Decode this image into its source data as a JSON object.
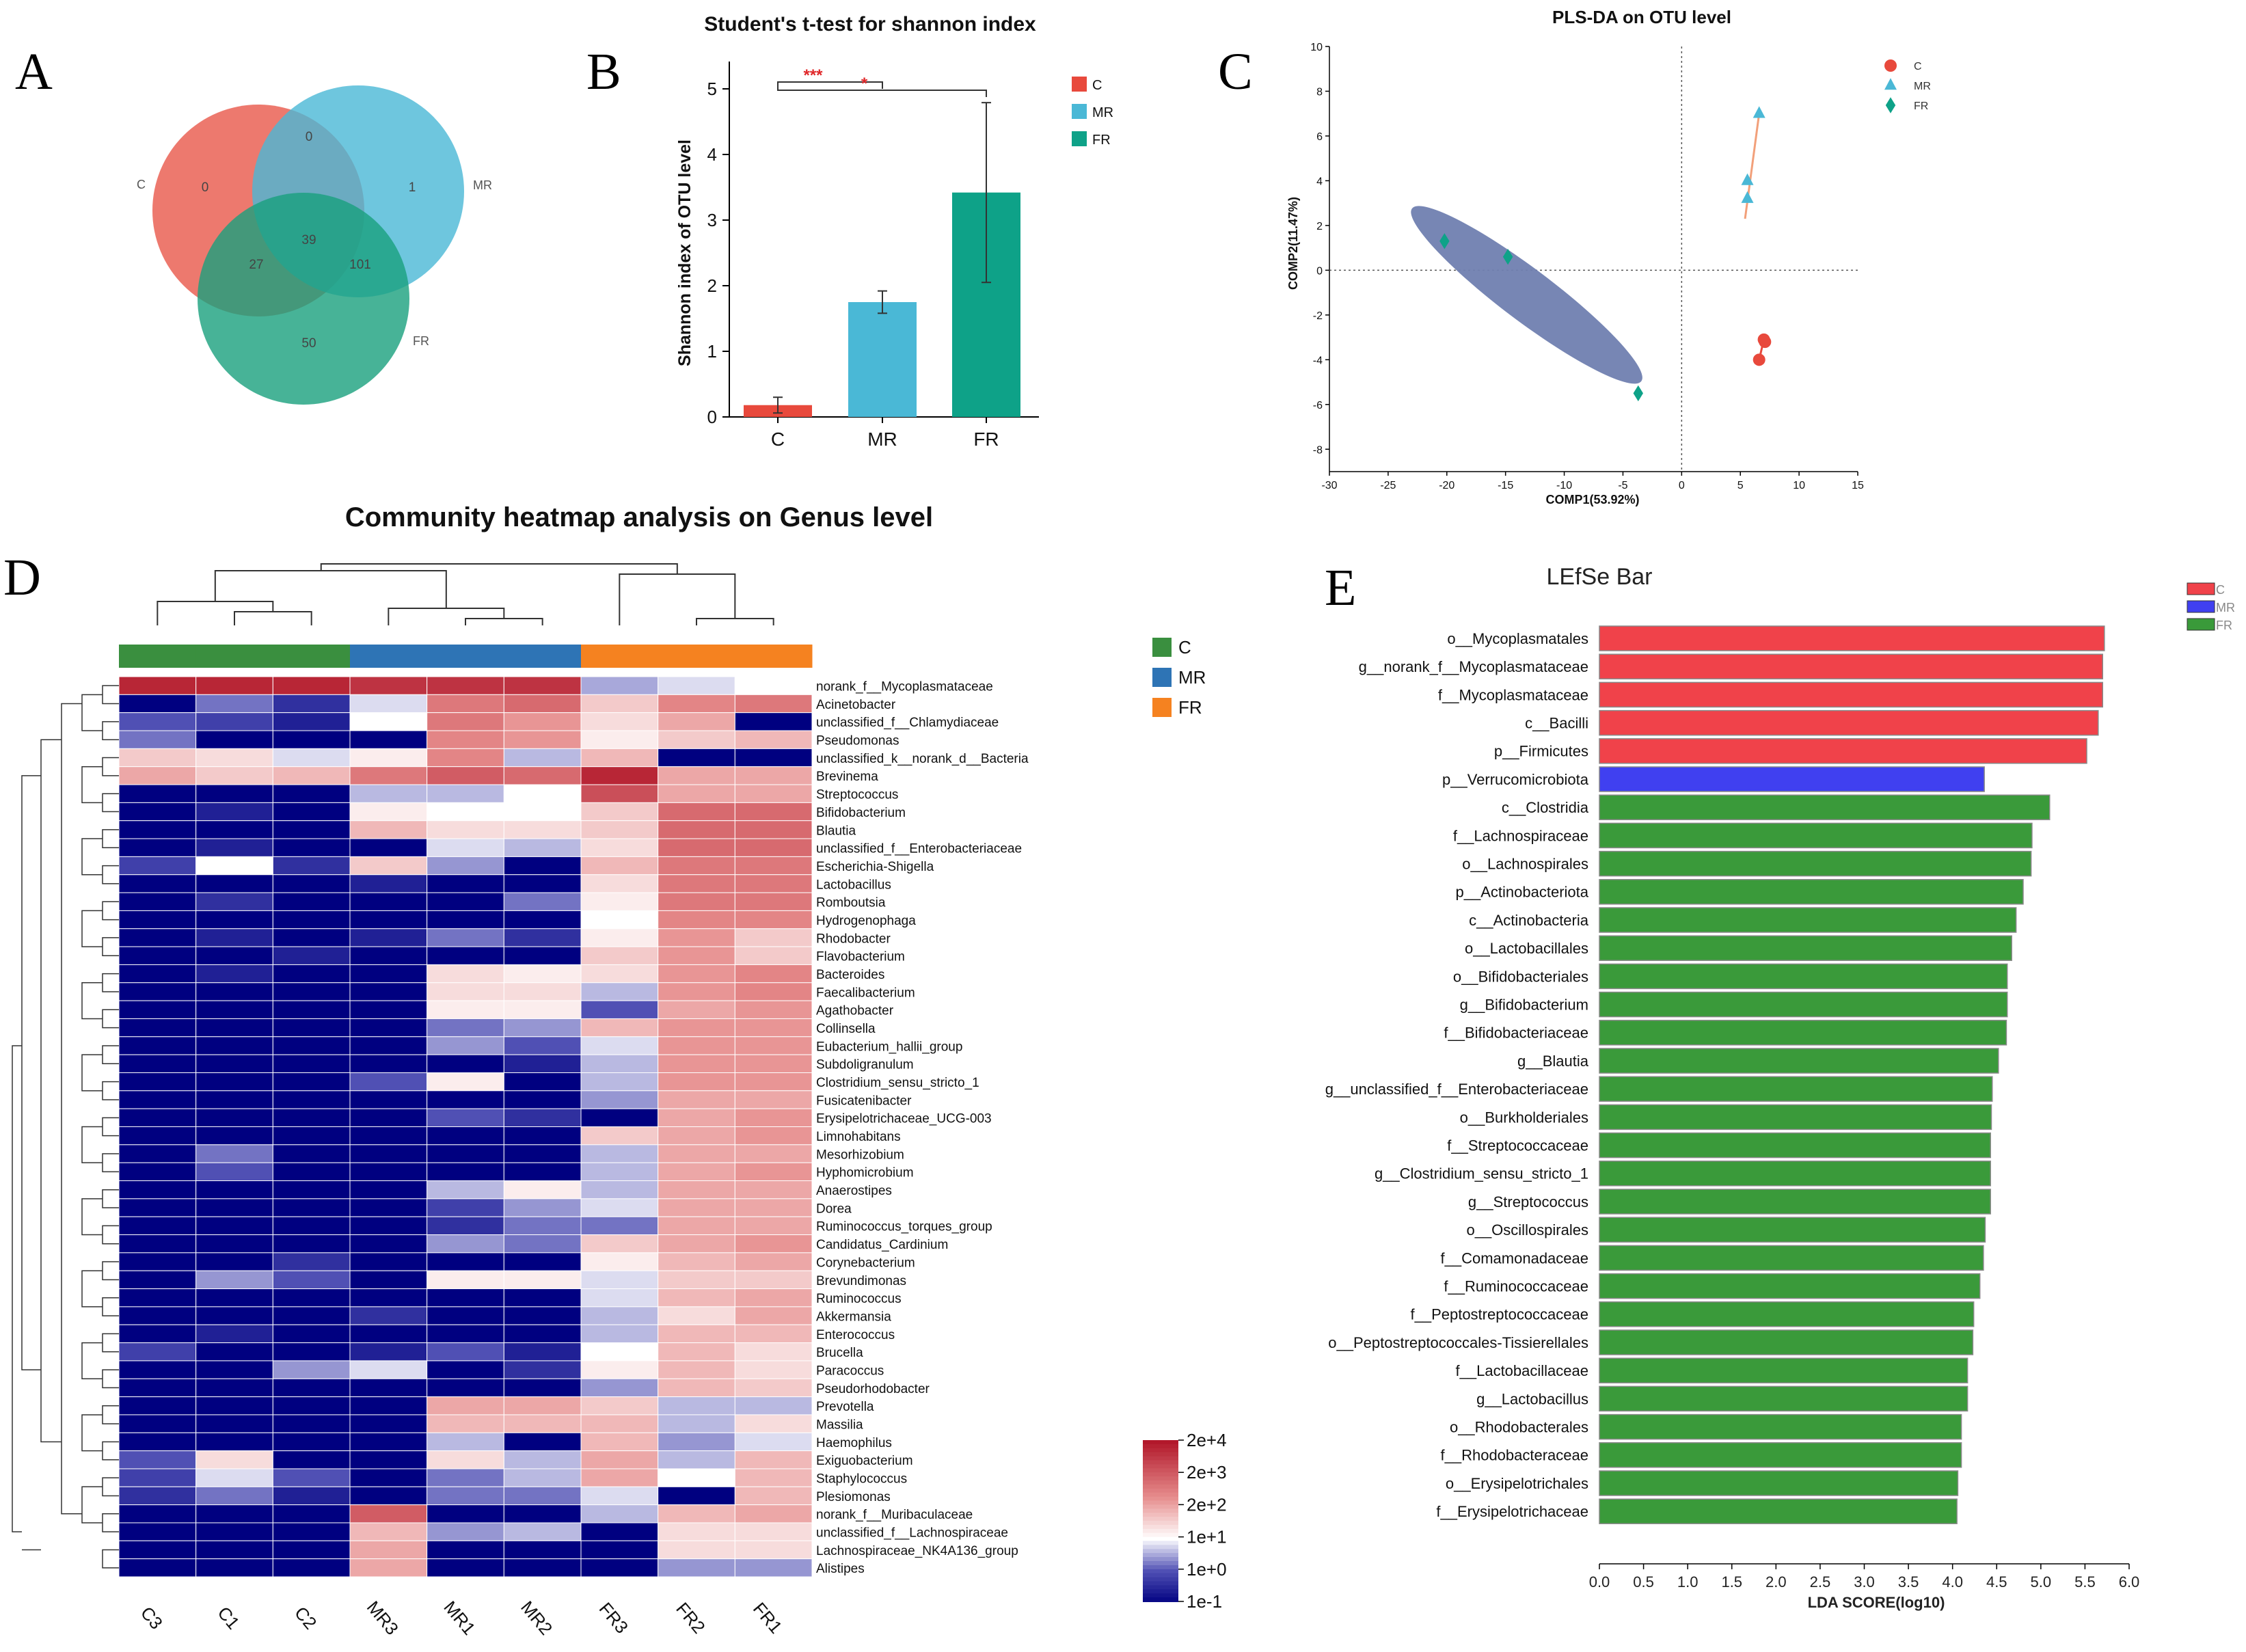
{
  "panels": {
    "A": "A",
    "B": "B",
    "C": "C",
    "D": "D",
    "E": "E"
  },
  "chart_data": [
    {
      "id": "venn",
      "type": "venn",
      "sets": [
        {
          "name": "C",
          "color": "#e8584a"
        },
        {
          "name": "MR",
          "color": "#4ab8d6"
        },
        {
          "name": "FR",
          "color": "#19a07d"
        }
      ],
      "regions": {
        "C_only": "0",
        "MR_only": "1",
        "FR_only": "50",
        "C_MR": "0",
        "C_FR": "27",
        "MR_FR": "101",
        "C_MR_FR": "39"
      }
    },
    {
      "id": "shannon",
      "type": "bar",
      "title": "Student's t-test for shannon index",
      "ylabel": "Shannon index of OTU level",
      "categories": [
        "C",
        "MR",
        "FR"
      ],
      "values": [
        0.18,
        1.75,
        3.42
      ],
      "errors": [
        0.12,
        0.17,
        1.37
      ],
      "colors": [
        "#e8493c",
        "#4ab8d6",
        "#0ea288"
      ],
      "ylim": [
        0,
        5
      ],
      "yticks": [
        "0",
        "1",
        "2",
        "3",
        "4",
        "5"
      ],
      "significance": [
        {
          "from": "C",
          "to": "MR",
          "label": "***"
        },
        {
          "from": "C",
          "to": "FR",
          "label": "*"
        }
      ],
      "legend": [
        {
          "name": "C",
          "color": "#e8493c"
        },
        {
          "name": "MR",
          "color": "#4ab8d6"
        },
        {
          "name": "FR",
          "color": "#0ea288"
        }
      ]
    },
    {
      "id": "plsda",
      "type": "scatter",
      "title": "PLS-DA on OTU level",
      "xlabel": "COMP1(53.92%)",
      "ylabel": "COMP2(11.47%)",
      "xlim": [
        -30,
        15
      ],
      "ylim": [
        -9,
        10
      ],
      "xticks": [
        "-30",
        "-25",
        "-20",
        "-15",
        "-10",
        "-5",
        "0",
        "5",
        "10",
        "15"
      ],
      "yticks": [
        "-8",
        "-6",
        "-4",
        "-2",
        "0",
        "2",
        "4",
        "6",
        "8",
        "10"
      ],
      "series": [
        {
          "name": "C",
          "color": "#e8493c",
          "shape": "circle",
          "points": [
            [
              7.0,
              -3.1
            ],
            [
              7.1,
              -3.2
            ],
            [
              6.6,
              -4.0
            ]
          ]
        },
        {
          "name": "MR",
          "color": "#4ab8d6",
          "shape": "triangle",
          "points": [
            [
              6.6,
              7.0
            ],
            [
              5.6,
              4.0
            ],
            [
              5.6,
              3.2
            ]
          ]
        },
        {
          "name": "FR",
          "color": "#0ea288",
          "shape": "diamond",
          "points": [
            [
              -20.2,
              1.3
            ],
            [
              -14.8,
              0.6
            ],
            [
              -3.7,
              -5.5
            ]
          ]
        }
      ],
      "ellipse": {
        "cx": -13.2,
        "cy": -1.1,
        "color": "#7080b0"
      }
    },
    {
      "id": "heatmap",
      "type": "heatmap",
      "title": "Community heatmap analysis on Genus level",
      "columns": [
        "C3",
        "C1",
        "C2",
        "MR3",
        "MR1",
        "MR2",
        "FR3",
        "FR2",
        "FR1"
      ],
      "column_groups": [
        "C",
        "C",
        "C",
        "MR",
        "MR",
        "MR",
        "FR",
        "FR",
        "FR"
      ],
      "group_legend": [
        {
          "name": "C",
          "color": "#3a8f3f"
        },
        {
          "name": "MR",
          "color": "#2e74b5"
        },
        {
          "name": "FR",
          "color": "#f58220"
        }
      ],
      "colorbar": [
        "2e+4",
        "2e+3",
        "2e+2",
        "1e+1",
        "1e+0",
        "1e-1"
      ],
      "rows": [
        "norank_f__Mycoplasmataceae",
        "Acinetobacter",
        "unclassified_f__Chlamydiaceae",
        "Pseudomonas",
        "unclassified_k__norank_d__Bacteria",
        "Brevinema",
        "Streptococcus",
        "Bifidobacterium",
        "Blautia",
        "unclassified_f__Enterobacteriaceae",
        "Escherichia-Shigella",
        "Lactobacillus",
        "Romboutsia",
        "Hydrogenophaga",
        "Rhodobacter",
        "Flavobacterium",
        "Bacteroides",
        "Faecalibacterium",
        "Agathobacter",
        "Collinsella",
        "Eubacterium_hallii_group",
        "Subdoligranulum",
        "Clostridium_sensu_stricto_1",
        "Fusicatenibacter",
        "Erysipelotrichaceae_UCG-003",
        "Limnohabitans",
        "Mesorhizobium",
        "Hyphomicrobium",
        "Anaerostipes",
        "Dorea",
        "Ruminococcus_torques_group",
        "Candidatus_Cardinium",
        "Corynebacterium",
        "Brevundimonas",
        "Ruminococcus",
        "Akkermansia",
        "Enterococcus",
        "Brucella",
        "Paracoccus",
        "Pseudorhodobacter",
        "Prevotella",
        "Massilia",
        "Haemophilus",
        "Exiguobacterium",
        "Staphylococcus",
        "Plesiomonas",
        "norank_f__Muribaculaceae",
        "unclassified_f__Lachnospiraceae",
        "Lachnospiraceae_NK4A136_group",
        "Alistipes"
      ],
      "values": [
        [
          4.8,
          4.8,
          4.8,
          4.6,
          4.6,
          4.6,
          1.5,
          1.8,
          2.0
        ],
        [
          0.0,
          1.2,
          0.6,
          1.8,
          3.6,
          3.8,
          2.6,
          3.4,
          3.6
        ],
        [
          1.0,
          0.8,
          0.4,
          2.0,
          3.6,
          3.2,
          2.4,
          3.0,
          0.0
        ],
        [
          1.2,
          0.0,
          0.0,
          0.0,
          3.4,
          3.2,
          2.2,
          2.6,
          2.8
        ],
        [
          2.6,
          2.4,
          1.8,
          2.2,
          3.4,
          1.6,
          2.8,
          0.0,
          0.0
        ],
        [
          3.0,
          2.6,
          2.8,
          3.6,
          4.0,
          3.8,
          4.8,
          3.0,
          3.0
        ],
        [
          0.0,
          0.0,
          0.0,
          1.6,
          1.6,
          2.0,
          4.2,
          3.0,
          3.0
        ],
        [
          0.0,
          0.4,
          0.0,
          2.2,
          2.0,
          2.0,
          2.6,
          3.8,
          3.8
        ],
        [
          0.0,
          0.0,
          0.0,
          2.8,
          2.4,
          2.4,
          2.6,
          3.8,
          3.8
        ],
        [
          0.0,
          0.4,
          0.0,
          0.0,
          1.8,
          1.6,
          2.4,
          3.8,
          3.8
        ],
        [
          0.8,
          2.0,
          0.6,
          2.6,
          1.4,
          0.0,
          2.8,
          3.6,
          3.6
        ],
        [
          0.0,
          0.0,
          0.0,
          0.4,
          0.0,
          0.0,
          2.4,
          3.6,
          3.6
        ],
        [
          0.0,
          0.6,
          0.0,
          0.0,
          0.0,
          1.2,
          2.2,
          3.6,
          3.6
        ],
        [
          0.0,
          0.0,
          0.0,
          0.0,
          0.0,
          0.0,
          2.0,
          3.4,
          3.4
        ],
        [
          0.0,
          0.4,
          0.0,
          0.4,
          1.2,
          0.6,
          2.2,
          3.2,
          2.6
        ],
        [
          0.0,
          0.0,
          0.4,
          0.0,
          0.0,
          0.0,
          2.6,
          3.2,
          2.6
        ],
        [
          0.0,
          0.4,
          0.0,
          0.0,
          2.4,
          2.2,
          2.4,
          3.2,
          3.4
        ],
        [
          0.0,
          0.0,
          0.0,
          0.0,
          2.4,
          2.4,
          1.6,
          3.2,
          3.4
        ],
        [
          0.0,
          0.0,
          0.0,
          0.0,
          2.2,
          2.2,
          1.0,
          3.0,
          3.2
        ],
        [
          0.0,
          0.0,
          0.0,
          0.0,
          1.2,
          1.4,
          2.8,
          3.2,
          3.2
        ],
        [
          0.0,
          0.0,
          0.0,
          0.0,
          1.4,
          1.0,
          1.8,
          3.2,
          3.2
        ],
        [
          0.0,
          0.0,
          0.0,
          0.0,
          0.0,
          0.4,
          1.6,
          3.2,
          3.2
        ],
        [
          0.0,
          0.0,
          0.0,
          1.0,
          2.2,
          0.0,
          1.6,
          3.2,
          3.2
        ],
        [
          0.0,
          0.0,
          0.0,
          0.0,
          0.0,
          0.0,
          1.4,
          3.0,
          3.0
        ],
        [
          0.0,
          0.0,
          0.0,
          0.0,
          1.0,
          0.6,
          0.0,
          3.0,
          3.2
        ],
        [
          0.0,
          0.0,
          0.0,
          0.0,
          0.0,
          0.0,
          2.6,
          3.0,
          3.2
        ],
        [
          0.0,
          1.2,
          0.0,
          0.0,
          0.0,
          0.0,
          1.6,
          3.0,
          3.0
        ],
        [
          0.0,
          1.0,
          0.0,
          0.0,
          0.0,
          0.0,
          1.6,
          3.0,
          3.2
        ],
        [
          0.0,
          0.0,
          0.0,
          0.0,
          1.6,
          2.2,
          1.6,
          3.0,
          3.0
        ],
        [
          0.0,
          0.0,
          0.0,
          0.0,
          0.8,
          1.4,
          1.8,
          3.0,
          3.0
        ],
        [
          0.0,
          0.0,
          0.0,
          0.0,
          0.6,
          1.2,
          1.2,
          3.0,
          3.0
        ],
        [
          0.0,
          0.0,
          0.0,
          0.0,
          1.4,
          1.2,
          2.6,
          3.0,
          3.2
        ],
        [
          0.0,
          0.0,
          0.6,
          0.0,
          0.0,
          0.0,
          2.2,
          2.8,
          3.0
        ],
        [
          0.0,
          1.4,
          1.0,
          0.0,
          2.2,
          2.2,
          1.8,
          2.6,
          2.6
        ],
        [
          0.0,
          0.0,
          0.0,
          0.0,
          0.0,
          0.0,
          1.8,
          2.8,
          3.0
        ],
        [
          0.0,
          0.0,
          0.0,
          0.6,
          0.0,
          0.0,
          1.6,
          2.4,
          3.0
        ],
        [
          0.0,
          0.4,
          0.0,
          0.0,
          0.0,
          0.0,
          1.6,
          2.8,
          2.8
        ],
        [
          0.8,
          0.0,
          0.0,
          0.4,
          1.0,
          0.4,
          2.0,
          2.8,
          2.4
        ],
        [
          0.0,
          0.0,
          1.4,
          1.8,
          0.0,
          0.6,
          2.2,
          2.8,
          2.4
        ],
        [
          0.0,
          0.0,
          0.0,
          0.0,
          0.0,
          0.0,
          1.4,
          2.8,
          2.6
        ],
        [
          0.0,
          0.0,
          0.0,
          0.0,
          3.0,
          3.0,
          2.6,
          1.6,
          1.6
        ],
        [
          0.0,
          0.0,
          0.0,
          0.0,
          2.8,
          2.8,
          2.8,
          1.6,
          2.4
        ],
        [
          0.0,
          0.0,
          0.0,
          0.0,
          1.6,
          0.0,
          2.8,
          1.4,
          1.8
        ],
        [
          1.0,
          2.4,
          0.0,
          0.0,
          2.4,
          1.6,
          3.0,
          1.6,
          2.8
        ],
        [
          0.8,
          1.8,
          1.0,
          0.0,
          1.2,
          1.6,
          3.0,
          2.0,
          2.8
        ],
        [
          0.6,
          1.2,
          0.4,
          0.0,
          1.2,
          1.2,
          1.8,
          0.0,
          2.8
        ],
        [
          0.0,
          0.0,
          0.0,
          4.0,
          0.0,
          0.0,
          1.6,
          2.8,
          3.0
        ],
        [
          0.0,
          0.0,
          0.0,
          2.8,
          1.4,
          1.6,
          0.0,
          2.4,
          2.4
        ],
        [
          0.0,
          0.0,
          0.0,
          3.0,
          0.0,
          0.0,
          0.0,
          2.4,
          2.4
        ],
        [
          0.0,
          0.0,
          0.0,
          3.0,
          0.0,
          0.0,
          0.0,
          1.4,
          1.4
        ]
      ]
    },
    {
      "id": "lefse",
      "type": "bar",
      "orientation": "horizontal",
      "title": "LEfSe Bar",
      "xlabel": "LDA SCORE(log10)",
      "xlim": [
        0,
        6.0
      ],
      "xticks": [
        "0.0",
        "0.5",
        "1.0",
        "1.5",
        "2.0",
        "2.5",
        "3.0",
        "3.5",
        "4.0",
        "4.5",
        "5.0",
        "5.5",
        "6.0"
      ],
      "legend": [
        {
          "name": "C",
          "color": "#f0424a"
        },
        {
          "name": "MR",
          "color": "#4040f0"
        },
        {
          "name": "FR",
          "color": "#3a9a3a"
        }
      ],
      "bars": [
        {
          "label": "o__Mycoplasmatales",
          "value": 5.72,
          "group": "C"
        },
        {
          "label": "g__norank_f__Mycoplasmataceae",
          "value": 5.7,
          "group": "C"
        },
        {
          "label": "f__Mycoplasmataceae",
          "value": 5.7,
          "group": "C"
        },
        {
          "label": "c__Bacilli",
          "value": 5.65,
          "group": "C"
        },
        {
          "label": "p__Firmicutes",
          "value": 5.52,
          "group": "C"
        },
        {
          "label": "p__Verrucomicrobiota",
          "value": 4.36,
          "group": "MR"
        },
        {
          "label": "c__Clostridia",
          "value": 5.1,
          "group": "FR"
        },
        {
          "label": "f__Lachnospiraceae",
          "value": 4.9,
          "group": "FR"
        },
        {
          "label": "o__Lachnospirales",
          "value": 4.89,
          "group": "FR"
        },
        {
          "label": "p__Actinobacteriota",
          "value": 4.8,
          "group": "FR"
        },
        {
          "label": "c__Actinobacteria",
          "value": 4.72,
          "group": "FR"
        },
        {
          "label": "o__Lactobacillales",
          "value": 4.67,
          "group": "FR"
        },
        {
          "label": "o__Bifidobacteriales",
          "value": 4.62,
          "group": "FR"
        },
        {
          "label": "g__Bifidobacterium",
          "value": 4.62,
          "group": "FR"
        },
        {
          "label": "f__Bifidobacteriaceae",
          "value": 4.61,
          "group": "FR"
        },
        {
          "label": "g__Blautia",
          "value": 4.52,
          "group": "FR"
        },
        {
          "label": "g__unclassified_f__Enterobacteriaceae",
          "value": 4.45,
          "group": "FR"
        },
        {
          "label": "o__Burkholderiales",
          "value": 4.44,
          "group": "FR"
        },
        {
          "label": "f__Streptococcaceae",
          "value": 4.43,
          "group": "FR"
        },
        {
          "label": "g__Clostridium_sensu_stricto_1",
          "value": 4.43,
          "group": "FR"
        },
        {
          "label": "g__Streptococcus",
          "value": 4.43,
          "group": "FR"
        },
        {
          "label": "o__Oscillospirales",
          "value": 4.37,
          "group": "FR"
        },
        {
          "label": "f__Comamonadaceae",
          "value": 4.35,
          "group": "FR"
        },
        {
          "label": "f__Ruminococcaceae",
          "value": 4.31,
          "group": "FR"
        },
        {
          "label": "f__Peptostreptococcaceae",
          "value": 4.24,
          "group": "FR"
        },
        {
          "label": "o__Peptostreptococcales-Tissierellales",
          "value": 4.23,
          "group": "FR"
        },
        {
          "label": "f__Lactobacillaceae",
          "value": 4.17,
          "group": "FR"
        },
        {
          "label": "g__Lactobacillus",
          "value": 4.17,
          "group": "FR"
        },
        {
          "label": "o__Rhodobacterales",
          "value": 4.1,
          "group": "FR"
        },
        {
          "label": "f__Rhodobacteraceae",
          "value": 4.1,
          "group": "FR"
        },
        {
          "label": "o__Erysipelotrichales",
          "value": 4.06,
          "group": "FR"
        },
        {
          "label": "f__Erysipelotrichaceae",
          "value": 4.05,
          "group": "FR"
        }
      ]
    }
  ]
}
